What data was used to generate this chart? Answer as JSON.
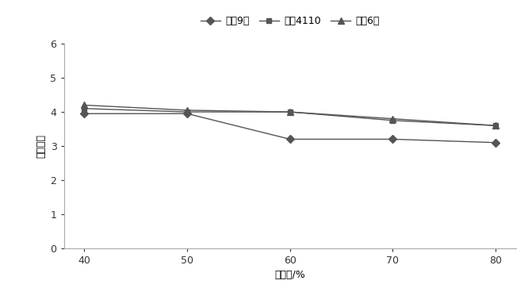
{
  "x": [
    40,
    50,
    60,
    70,
    80
  ],
  "series": [
    {
      "label": "濦麦9号",
      "values": [
        3.95,
        3.95,
        3.2,
        3.2,
        3.1
      ],
      "color": "#555555",
      "marker": "D",
      "markersize": 5
    },
    {
      "label": "偃展4110",
      "values": [
        4.1,
        4.0,
        4.0,
        3.75,
        3.6
      ],
      "color": "#555555",
      "marker": "s",
      "markersize": 5
    },
    {
      "label": "太盰6号",
      "values": [
        4.2,
        4.05,
        4.0,
        3.8,
        3.6
      ],
      "color": "#555555",
      "marker": "^",
      "markersize": 6
    }
  ],
  "xlabel": "真空度/%",
  "ylabel": "菌落总数",
  "ylim": [
    0,
    6
  ],
  "yticks": [
    0,
    1,
    2,
    3,
    4,
    5,
    6
  ],
  "xticks": [
    40,
    50,
    60,
    70,
    80
  ],
  "background_color": "#ffffff",
  "figsize": [
    6.71,
    3.68
  ],
  "dpi": 100
}
